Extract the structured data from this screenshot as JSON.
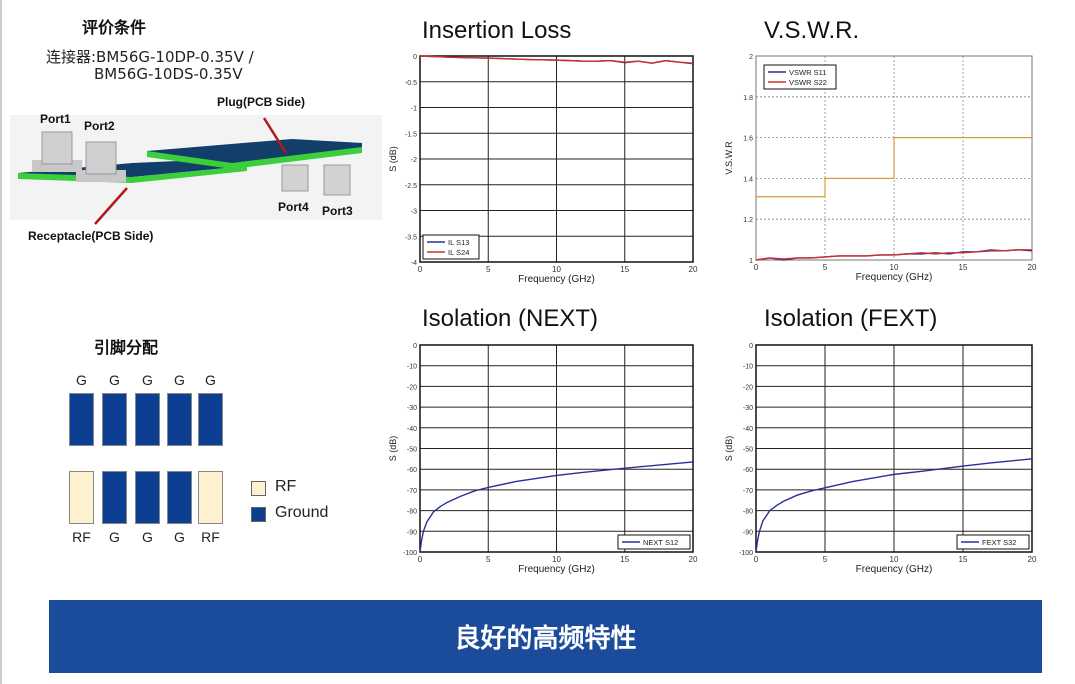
{
  "left": {
    "eval_title": "评价条件",
    "connector_line1": "连接器:BM56G-10DP-0.35V /",
    "connector_line2": "BM56G-10DS-0.35V",
    "diagram": {
      "port1": "Port1",
      "port2": "Port2",
      "port3": "Port3",
      "port4": "Port4",
      "plug": "Plug(PCB Side)",
      "receptacle": "Receptacle(PCB Side)"
    },
    "pin_title": "引脚分配",
    "top_row_labels": [
      "G",
      "G",
      "G",
      "G",
      "G"
    ],
    "bottom_row_labels": [
      "RF",
      "G",
      "G",
      "G",
      "RF"
    ],
    "bottom_row_types": [
      "RF",
      "Ground",
      "Ground",
      "Ground",
      "RF"
    ],
    "legend": [
      {
        "label": "RF",
        "color": "#fdf1cf"
      },
      {
        "label": "Ground",
        "color": "#0c3f92"
      }
    ]
  },
  "banner": {
    "text": "良好的高频特性",
    "color": "#1b4b9b"
  },
  "chart_data": [
    {
      "type": "line",
      "title": "Insertion Loss",
      "xlabel": "Frequency (GHz)",
      "ylabel": "S (dB)",
      "xlim": [
        0,
        20
      ],
      "ylim": [
        -4,
        0
      ],
      "xticks": [
        0,
        5,
        10,
        15,
        20
      ],
      "yticks": [
        0,
        -0.5,
        -1,
        -1.5,
        -2,
        -2.5,
        -3,
        -3.5,
        -4
      ],
      "ytick_labels": [
        "0",
        "-0.5",
        "-1",
        "-1.5",
        "-2",
        "-2.5",
        "-3",
        "-3.5",
        "-4"
      ],
      "grid": "solid",
      "legend": "bottom-left",
      "x": [
        0,
        1,
        2,
        3,
        4,
        5,
        6,
        7,
        8,
        9,
        10,
        11,
        12,
        13,
        14,
        15,
        16,
        17,
        18,
        19,
        20
      ],
      "series": [
        {
          "name": "IL S13",
          "color": "#2b2f9e",
          "values": [
            0,
            -0.01,
            -0.02,
            -0.03,
            -0.035,
            -0.04,
            -0.05,
            -0.06,
            -0.07,
            -0.075,
            -0.08,
            -0.09,
            -0.1,
            -0.1,
            -0.09,
            -0.13,
            -0.1,
            -0.14,
            -0.09,
            -0.12,
            -0.15
          ]
        },
        {
          "name": "IL S24",
          "color": "#d0302a",
          "values": [
            0,
            -0.01,
            -0.02,
            -0.03,
            -0.035,
            -0.045,
            -0.05,
            -0.06,
            -0.07,
            -0.075,
            -0.08,
            -0.09,
            -0.1,
            -0.1,
            -0.09,
            -0.12,
            -0.1,
            -0.14,
            -0.09,
            -0.12,
            -0.14
          ]
        }
      ]
    },
    {
      "type": "line",
      "title": "V.S.W.R.",
      "xlabel": "Frequency (GHz)",
      "ylabel": "V.S.W.R",
      "xlim": [
        0,
        20
      ],
      "ylim": [
        1,
        2
      ],
      "xticks": [
        0,
        5,
        10,
        15,
        20
      ],
      "yticks": [
        1,
        1.2,
        1.4,
        1.6,
        1.8,
        2
      ],
      "ytick_labels": [
        "1",
        "1.2",
        "1.4",
        "1.6",
        "1.8",
        "2"
      ],
      "grid": "dotted",
      "legend": "top-left",
      "x": [
        0,
        1,
        2,
        3,
        4,
        5,
        6,
        7,
        8,
        9,
        10,
        11,
        12,
        13,
        14,
        15,
        16,
        17,
        18,
        19,
        20
      ],
      "series": [
        {
          "name": "VSWR S11",
          "color": "#2b2f9e",
          "values": [
            1.0,
            1.01,
            1.0,
            1.01,
            1.01,
            1.015,
            1.02,
            1.02,
            1.02,
            1.025,
            1.025,
            1.03,
            1.03,
            1.035,
            1.03,
            1.04,
            1.04,
            1.045,
            1.045,
            1.05,
            1.045
          ]
        },
        {
          "name": "VSWR S22",
          "color": "#d0302a",
          "values": [
            1.0,
            1.01,
            1.005,
            1.01,
            1.01,
            1.015,
            1.02,
            1.02,
            1.02,
            1.025,
            1.025,
            1.03,
            1.035,
            1.03,
            1.035,
            1.035,
            1.04,
            1.05,
            1.045,
            1.05,
            1.05
          ]
        },
        {
          "color": "#d89a3a",
          "step": true,
          "x": [
            0,
            5,
            5,
            10,
            10,
            20
          ],
          "values": [
            1.31,
            1.31,
            1.4,
            1.4,
            1.6,
            1.6
          ]
        }
      ]
    },
    {
      "type": "line",
      "title": "Isolation (NEXT)",
      "xlabel": "Frequency (GHz)",
      "ylabel": "S (dB)",
      "xlim": [
        0,
        20
      ],
      "ylim": [
        -100,
        0
      ],
      "xticks": [
        0,
        5,
        10,
        15,
        20
      ],
      "yticks": [
        0,
        -10,
        -20,
        -30,
        -40,
        -50,
        -60,
        -70,
        -80,
        -90,
        -100
      ],
      "ytick_labels": [
        "0",
        "-10",
        "-20",
        "-30",
        "-40",
        "-50",
        "-60",
        "-70",
        "-80",
        "-90",
        "-100"
      ],
      "grid": "solid",
      "legend": "bottom-right",
      "x": [
        0,
        0.1,
        0.25,
        0.5,
        1,
        1.5,
        2,
        3,
        4,
        5,
        7,
        10,
        12,
        15,
        17,
        20
      ],
      "series": [
        {
          "name": "NEXT S12",
          "color": "#2b2f9e",
          "values": [
            -100,
            -95,
            -90,
            -85.5,
            -80.5,
            -78,
            -76,
            -73,
            -70.5,
            -68.8,
            -66,
            -63,
            -61.5,
            -59.5,
            -58.3,
            -56.5
          ]
        }
      ]
    },
    {
      "type": "line",
      "title": "Isolation (FEXT)",
      "xlabel": "Frequency (GHz)",
      "ylabel": "S (dB)",
      "xlim": [
        0,
        20
      ],
      "ylim": [
        -100,
        0
      ],
      "xticks": [
        0,
        5,
        10,
        15,
        20
      ],
      "yticks": [
        0,
        -10,
        -20,
        -30,
        -40,
        -50,
        -60,
        -70,
        -80,
        -90,
        -100
      ],
      "ytick_labels": [
        "0",
        "-10",
        "-20",
        "-30",
        "-40",
        "-50",
        "-60",
        "-70",
        "-80",
        "-90",
        "-100"
      ],
      "grid": "solid",
      "legend": "bottom-right",
      "x": [
        0,
        0.1,
        0.25,
        0.5,
        1,
        1.5,
        2,
        3,
        4,
        5,
        7,
        10,
        12,
        15,
        17,
        20
      ],
      "series": [
        {
          "name": "FEXT S32",
          "color": "#2b2f9e",
          "values": [
            -100,
            -95,
            -90,
            -85,
            -80,
            -77.5,
            -75.5,
            -72.5,
            -70.5,
            -69,
            -66,
            -62.5,
            -61,
            -58.5,
            -57,
            -55
          ]
        }
      ]
    }
  ]
}
